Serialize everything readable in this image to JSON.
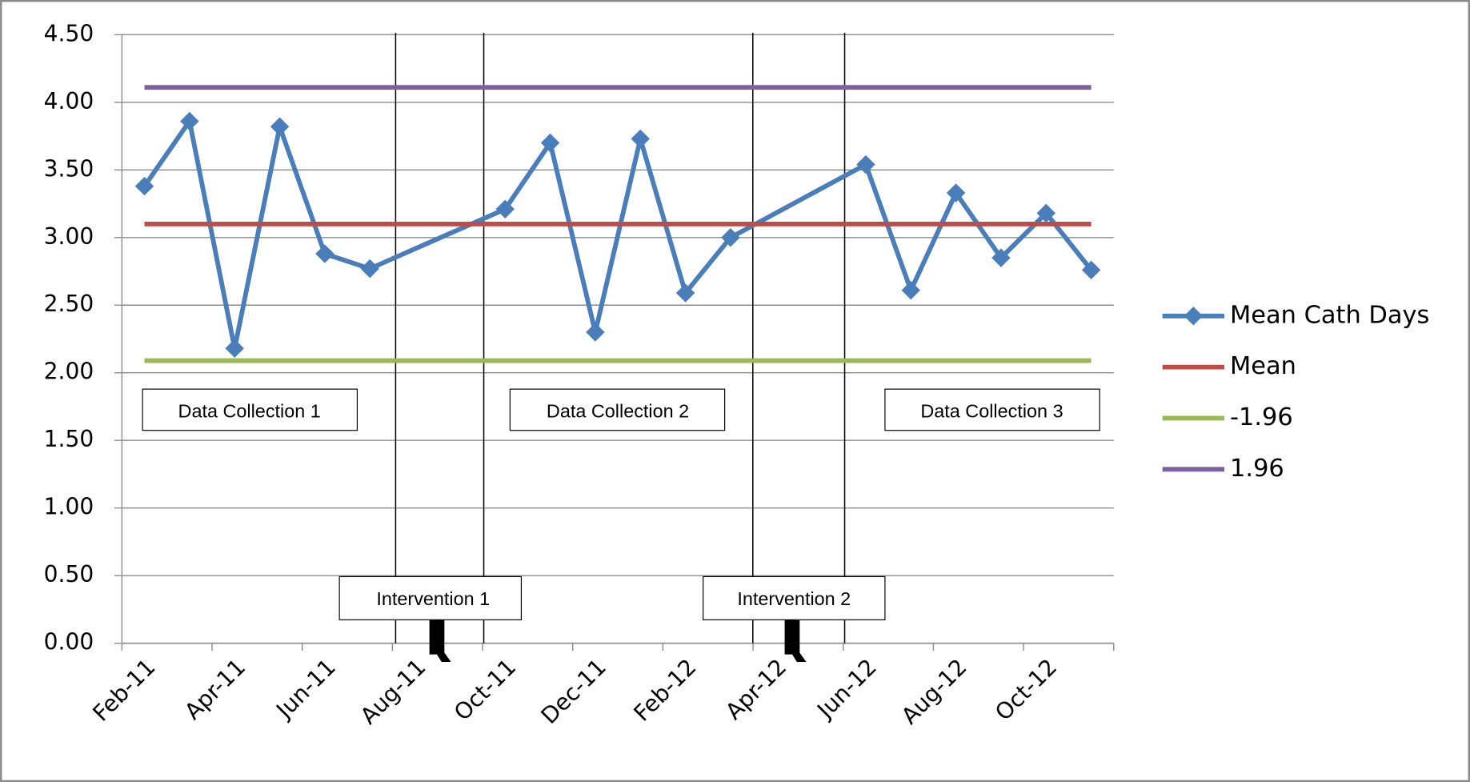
{
  "chart_data": {
    "type": "line",
    "x": [
      "Feb-11",
      "Mar-11",
      "Apr-11",
      "May-11",
      "Jun-11",
      "Jul-11",
      "Oct-11",
      "Nov-11",
      "Dec-11",
      "Jan-12",
      "Feb-12",
      "Mar-12",
      "Jun-12",
      "Jul-12",
      "Aug-12",
      "Sep-12",
      "Oct-12",
      "Nov-12"
    ],
    "xlim": [
      "Feb-11",
      "Nov-12"
    ],
    "xticks": [
      "Feb-11",
      "Apr-11",
      "Jun-11",
      "Aug-11",
      "Oct-11",
      "Dec-11",
      "Feb-12",
      "Apr-12",
      "Jun-12",
      "Aug-12",
      "Oct-12"
    ],
    "ylim": [
      0,
      4.5
    ],
    "yticks": [
      {
        "value": 0,
        "label": "0.00"
      },
      {
        "value": 0.5,
        "label": "0.50"
      },
      {
        "value": 1,
        "label": "1.00"
      },
      {
        "value": 1.5,
        "label": "1.50"
      },
      {
        "value": 2,
        "label": "2.00"
      },
      {
        "value": 2.5,
        "label": "2.50"
      },
      {
        "value": 3,
        "label": "3.00"
      },
      {
        "value": 3.5,
        "label": "3.50"
      },
      {
        "value": 4,
        "label": "4.00"
      },
      {
        "value": 4.5,
        "label": "4.50"
      }
    ],
    "grid": true,
    "legend": "right",
    "series": [
      {
        "name": "Mean Cath Days",
        "color": "#4a7ebb",
        "marker": "diamond",
        "values": [
          3.38,
          3.86,
          2.18,
          3.82,
          2.88,
          2.77,
          3.21,
          3.7,
          2.3,
          3.73,
          2.59,
          3.0,
          3.54,
          2.61,
          3.33,
          2.85,
          3.18,
          2.76
        ]
      },
      {
        "name": "Mean",
        "color": "#be4b48",
        "values": [
          3.1,
          3.1,
          3.1,
          3.1,
          3.1,
          3.1,
          3.1,
          3.1,
          3.1,
          3.1,
          3.1,
          3.1,
          3.1,
          3.1,
          3.1,
          3.1,
          3.1,
          3.1
        ]
      },
      {
        "name": "-1.96",
        "color": "#98b954",
        "values": [
          2.09,
          2.09,
          2.09,
          2.09,
          2.09,
          2.09,
          2.09,
          2.09,
          2.09,
          2.09,
          2.09,
          2.09,
          2.09,
          2.09,
          2.09,
          2.09,
          2.09,
          2.09
        ]
      },
      {
        "name": "1.96",
        "color": "#7d60a0",
        "values": [
          4.11,
          4.11,
          4.11,
          4.11,
          4.11,
          4.11,
          4.11,
          4.11,
          4.11,
          4.11,
          4.11,
          4.11,
          4.11,
          4.11,
          4.11,
          4.11,
          4.11,
          4.11
        ]
      }
    ],
    "annotations": [
      "Data Collection 1",
      "Data Collection 2",
      "Data Collection 3",
      "Intervention 1",
      "Intervention 2"
    ]
  }
}
